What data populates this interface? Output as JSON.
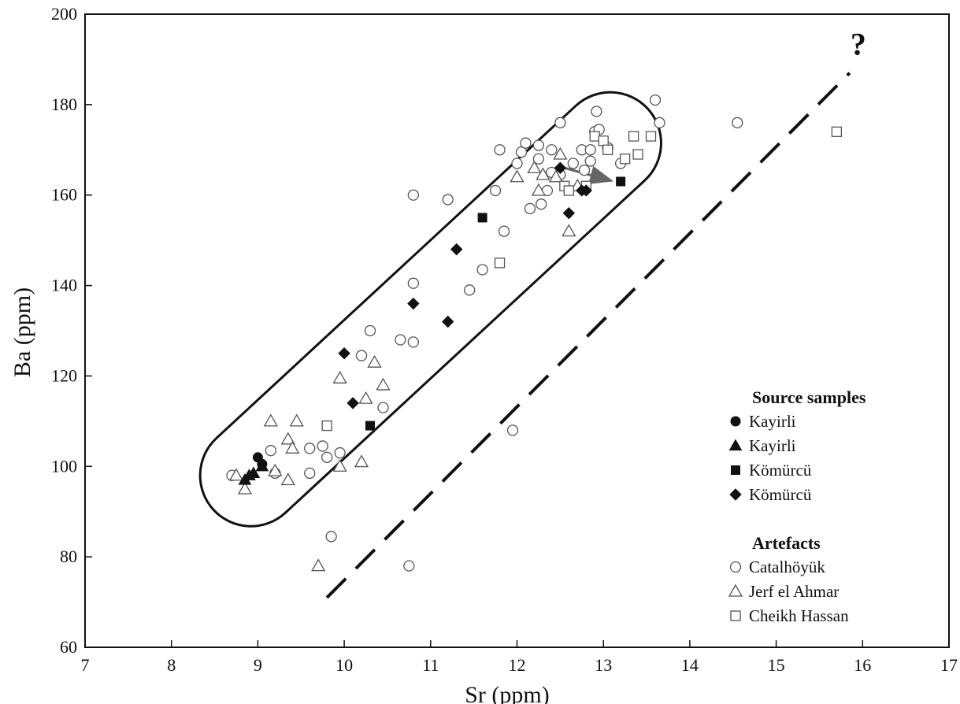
{
  "chart_data": {
    "type": "scatter",
    "xlabel": "Sr (ppm)",
    "ylabel": "Ba (ppm)",
    "xlim": [
      7,
      17
    ],
    "ylim": [
      60,
      200
    ],
    "xticks": [
      "7",
      "8",
      "9",
      "10",
      "11",
      "12",
      "13",
      "14",
      "15",
      "16",
      "17"
    ],
    "yticks": [
      "60",
      "80",
      "100",
      "120",
      "140",
      "160",
      "180",
      "200"
    ],
    "grid": false,
    "legend_position": "bottom-right",
    "legend": {
      "source_title": "Source samples",
      "artefact_title": "Artefacts"
    },
    "annotation": "?",
    "dashed_line": {
      "from": [
        9.8,
        71
      ],
      "to": [
        15.85,
        187
      ]
    },
    "arrow": {
      "from": [
        12.55,
        166
      ],
      "to": [
        13.2,
        163
      ]
    },
    "series": [
      {
        "name": "Kayirli",
        "group": "source",
        "marker": "circle-filled",
        "points": [
          [
            9.0,
            102
          ],
          [
            9.05,
            100.5
          ]
        ]
      },
      {
        "name": "Kayirli",
        "group": "source",
        "marker": "triangle-filled",
        "points": [
          [
            8.85,
            97
          ],
          [
            8.9,
            98
          ],
          [
            8.95,
            98.5
          ],
          [
            9.05,
            100
          ]
        ]
      },
      {
        "name": "Kömürcü",
        "group": "source",
        "marker": "square-filled",
        "points": [
          [
            10.3,
            109
          ],
          [
            11.6,
            155
          ],
          [
            13.2,
            163
          ]
        ]
      },
      {
        "name": "Kömürcü",
        "group": "source",
        "marker": "diamond-filled",
        "points": [
          [
            10.0,
            125
          ],
          [
            10.1,
            114
          ],
          [
            10.8,
            136
          ],
          [
            11.2,
            132
          ],
          [
            11.3,
            148
          ],
          [
            12.5,
            166
          ],
          [
            12.6,
            156
          ],
          [
            12.75,
            161
          ],
          [
            12.8,
            161
          ]
        ]
      },
      {
        "name": "Catalhöyük",
        "group": "artefact",
        "marker": "circle-open",
        "points": [
          [
            8.7,
            98
          ],
          [
            9.15,
            103.5
          ],
          [
            9.2,
            98.5
          ],
          [
            9.6,
            104
          ],
          [
            9.6,
            98.5
          ],
          [
            9.75,
            104.5
          ],
          [
            9.8,
            102
          ],
          [
            9.85,
            84.5
          ],
          [
            9.95,
            103
          ],
          [
            10.2,
            124.5
          ],
          [
            10.3,
            130
          ],
          [
            10.45,
            113
          ],
          [
            10.65,
            128
          ],
          [
            10.75,
            78
          ],
          [
            10.8,
            140.5
          ],
          [
            10.8,
            127.5
          ],
          [
            10.8,
            160
          ],
          [
            11.2,
            159
          ],
          [
            11.45,
            139
          ],
          [
            11.6,
            143.5
          ],
          [
            11.75,
            161
          ],
          [
            11.8,
            170
          ],
          [
            11.85,
            152
          ],
          [
            11.95,
            108
          ],
          [
            12.0,
            167
          ],
          [
            12.05,
            169.5
          ],
          [
            12.1,
            171.5
          ],
          [
            12.15,
            157
          ],
          [
            12.25,
            168
          ],
          [
            12.25,
            171
          ],
          [
            12.28,
            158
          ],
          [
            12.35,
            161
          ],
          [
            12.4,
            165
          ],
          [
            12.4,
            170
          ],
          [
            12.5,
            176
          ],
          [
            12.5,
            164.5
          ],
          [
            12.65,
            167
          ],
          [
            12.75,
            170
          ],
          [
            12.78,
            165.5
          ],
          [
            12.85,
            167.5
          ],
          [
            12.85,
            170
          ],
          [
            12.9,
            174
          ],
          [
            12.92,
            178.5
          ],
          [
            12.95,
            174.5
          ],
          [
            13.05,
            170.5
          ],
          [
            13.2,
            167
          ],
          [
            13.6,
            181
          ],
          [
            13.65,
            176
          ],
          [
            14.55,
            176
          ]
        ]
      },
      {
        "name": "Jerf el Ahmar",
        "group": "artefact",
        "marker": "triangle-open",
        "points": [
          [
            8.75,
            98
          ],
          [
            8.85,
            95
          ],
          [
            9.15,
            110
          ],
          [
            9.2,
            99
          ],
          [
            9.35,
            97
          ],
          [
            9.35,
            106
          ],
          [
            9.4,
            104
          ],
          [
            9.45,
            110
          ],
          [
            9.7,
            78
          ],
          [
            9.95,
            100
          ],
          [
            9.95,
            119.5
          ],
          [
            10.2,
            101
          ],
          [
            10.25,
            115
          ],
          [
            10.35,
            123
          ],
          [
            10.45,
            118
          ],
          [
            12.0,
            164
          ],
          [
            12.2,
            166
          ],
          [
            12.25,
            161
          ],
          [
            12.3,
            164.5
          ],
          [
            12.45,
            164
          ],
          [
            12.5,
            169
          ],
          [
            12.6,
            152
          ],
          [
            12.7,
            162
          ]
        ]
      },
      {
        "name": "Cheikh Hassan",
        "group": "artefact",
        "marker": "square-open",
        "points": [
          [
            9.8,
            109
          ],
          [
            11.8,
            145
          ],
          [
            12.55,
            162
          ],
          [
            12.6,
            161
          ],
          [
            12.8,
            162
          ],
          [
            12.9,
            173
          ],
          [
            13.0,
            172
          ],
          [
            13.05,
            170
          ],
          [
            13.25,
            168
          ],
          [
            13.35,
            173
          ],
          [
            13.4,
            169
          ],
          [
            13.55,
            173
          ],
          [
            15.7,
            174
          ]
        ]
      }
    ]
  }
}
